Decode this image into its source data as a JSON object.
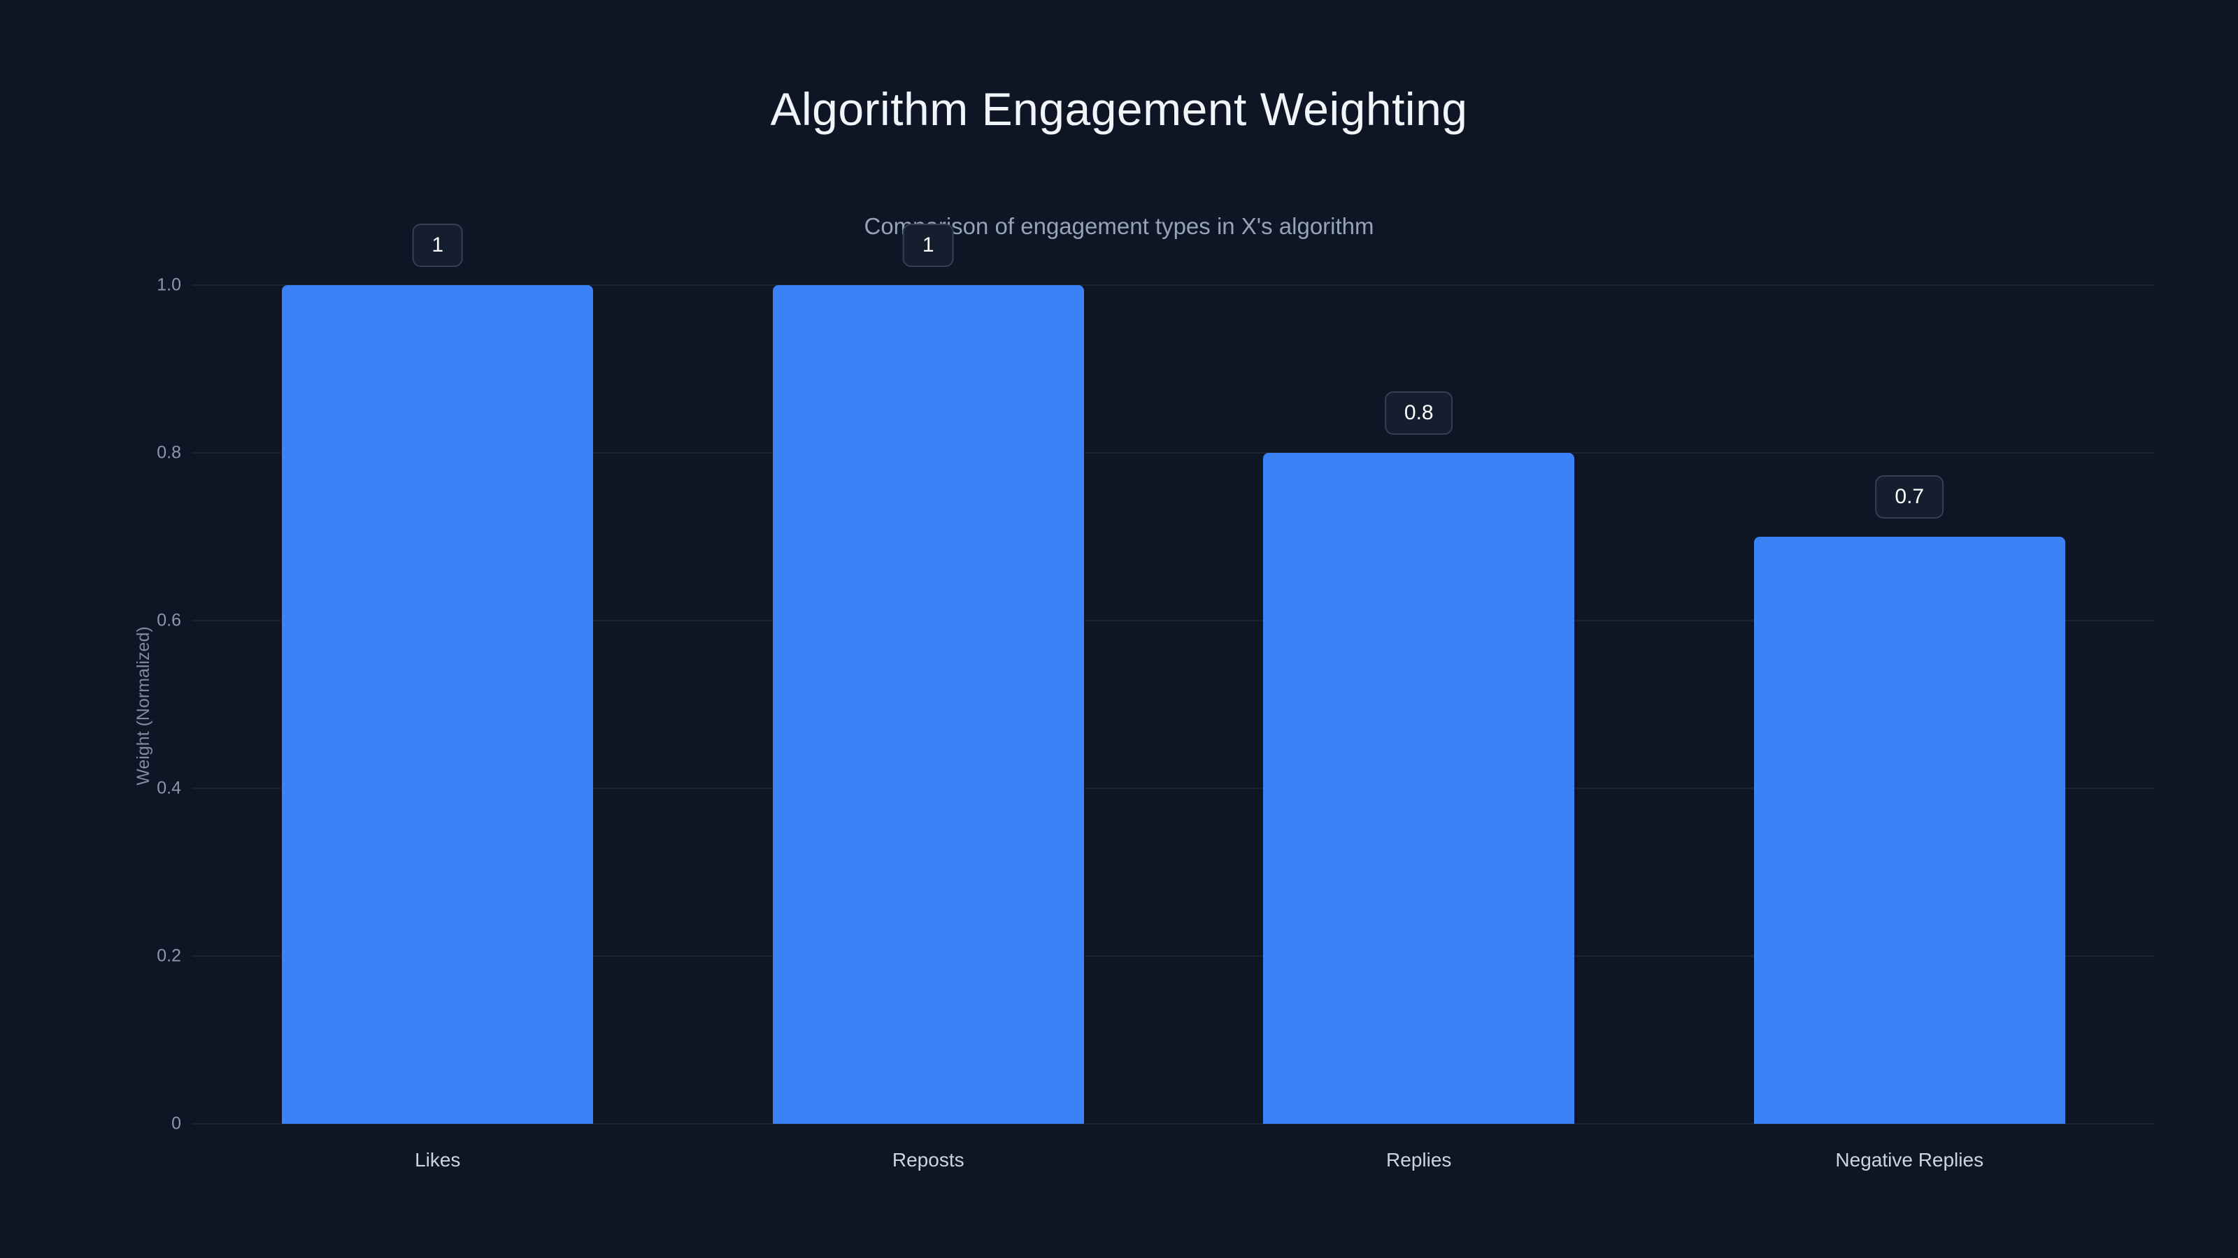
{
  "page": {
    "background": "#0e1626",
    "accent_color": "#3b82f6"
  },
  "chart_data": {
    "type": "bar",
    "title": "Algorithm Engagement Weighting",
    "subtitle": "Comparison of engagement types in X's algorithm",
    "categories": [
      "Likes",
      "Reposts",
      "Replies",
      "Negative Replies"
    ],
    "values": [
      1,
      1,
      0.8,
      0.7
    ],
    "value_labels": [
      "1",
      "1",
      "0.8",
      "0.7"
    ],
    "xlabel": "",
    "ylabel": "Weight (Normalized)",
    "ylim": [
      0,
      1.0
    ],
    "yticks": [
      "0",
      "0.2",
      "0.4",
      "0.6",
      "0.8",
      "1.0"
    ],
    "grid": true,
    "legend": false,
    "bar_color": "#3b82f6"
  }
}
